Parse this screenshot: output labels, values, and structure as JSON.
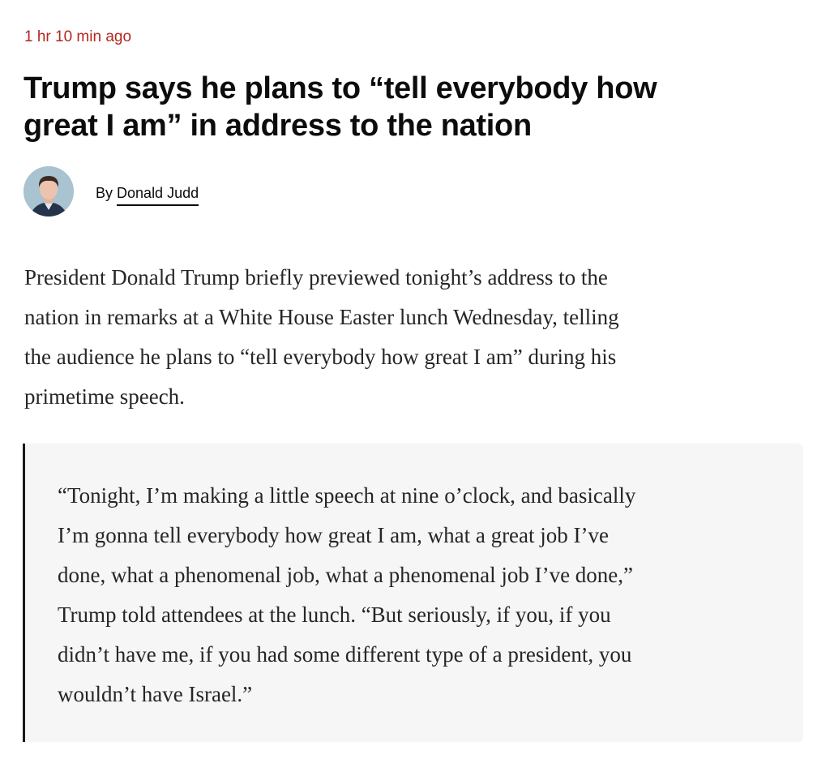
{
  "timestamp": "1 hr 10 min ago",
  "headline_lines": [
    "Trump says he plans to “tell everybody how",
    "great I am” in address to the nation"
  ],
  "byline": {
    "prefix": "By",
    "author": "Donald Judd"
  },
  "paragraph_lines": [
    "President Donald Trump briefly previewed tonight’s address to the",
    "nation in remarks at a White House Easter lunch Wednesday, telling",
    "the audience he plans to “tell everybody how great I am” during his",
    "primetime speech."
  ],
  "quote_lines": [
    "“Tonight, I’m making a little speech at nine o’clock, and basically",
    "I’m gonna tell everybody how great I am, what a great job I’ve",
    "done, what a phenomenal job, what a phenomenal job I’ve done,”",
    "Trump told attendees at the lunch. “But seriously, if you, if you",
    "didn’t have me, if you had some different type of a president, you",
    "wouldn’t have Israel.”"
  ],
  "colors": {
    "timestamp": "#b5261e",
    "quote_bg": "#f6f6f6",
    "text": "#262626"
  }
}
